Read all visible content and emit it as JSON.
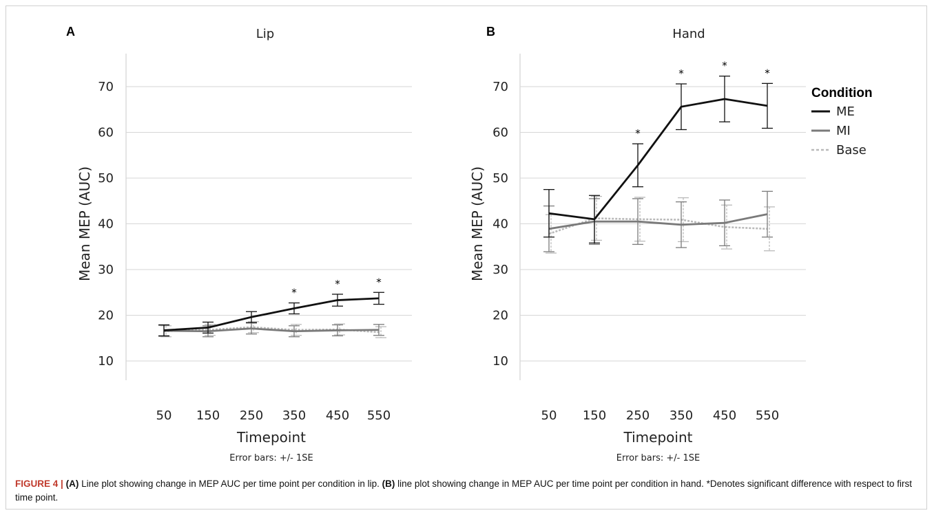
{
  "chart_data": [
    {
      "type": "line",
      "panel": "A",
      "title": "Lip",
      "xlabel": "Timepoint",
      "ylabel": "Mean MEP (AUC)",
      "x": [
        50,
        150,
        250,
        350,
        450,
        550
      ],
      "yticks": [
        10,
        20,
        30,
        40,
        50,
        60,
        70
      ],
      "ylim": [
        7,
        77
      ],
      "grid": true,
      "error_note": "Error bars: +/- 1SE",
      "series": [
        {
          "name": "ME",
          "color": "#111111",
          "values": [
            16.7,
            17.3,
            19.6,
            21.5,
            23.3,
            23.7
          ],
          "se": [
            1.2,
            1.2,
            1.2,
            1.2,
            1.3,
            1.3
          ]
        },
        {
          "name": "MI",
          "color": "#7a7a7a",
          "values": [
            16.6,
            16.5,
            17.1,
            16.5,
            16.7,
            16.8
          ],
          "se": [
            1.2,
            1.2,
            1.2,
            1.2,
            1.2,
            1.2
          ]
        },
        {
          "name": "Base",
          "color": "#b9b9b9",
          "values": [
            16.5,
            16.8,
            17.4,
            16.8,
            16.9,
            16.3
          ],
          "se": [
            1.2,
            1.2,
            1.2,
            1.2,
            1.2,
            1.2
          ]
        }
      ],
      "significant_x": [
        350,
        450,
        550
      ]
    },
    {
      "type": "line",
      "panel": "B",
      "title": "Hand",
      "xlabel": "Timepoint",
      "ylabel": "Mean MEP (AUC)",
      "x": [
        50,
        150,
        250,
        350,
        450,
        550
      ],
      "yticks": [
        10,
        20,
        30,
        40,
        50,
        60,
        70
      ],
      "ylim": [
        7,
        77
      ],
      "grid": true,
      "error_note": "Error bars: +/- 1SE",
      "series": [
        {
          "name": "ME",
          "color": "#111111",
          "values": [
            42.3,
            41.0,
            52.8,
            65.6,
            67.3,
            65.8
          ],
          "se": [
            5.2,
            5.2,
            4.7,
            5.0,
            5.0,
            4.9
          ]
        },
        {
          "name": "MI",
          "color": "#7a7a7a",
          "values": [
            38.9,
            40.5,
            40.5,
            39.8,
            40.2,
            42.1
          ],
          "se": [
            5.0,
            5.0,
            5.0,
            5.0,
            5.0,
            5.0
          ]
        },
        {
          "name": "Base",
          "color": "#b9b9b9",
          "values": [
            37.8,
            41.2,
            41.0,
            40.9,
            39.3,
            38.9
          ],
          "se": [
            4.2,
            4.8,
            4.8,
            4.8,
            4.8,
            4.8
          ]
        }
      ],
      "significant_x": [
        250,
        350,
        450,
        550
      ]
    }
  ],
  "legend": {
    "title": "Condition",
    "placement": "right",
    "items": [
      {
        "name": "ME",
        "color": "#111111",
        "style": "solid"
      },
      {
        "name": "MI",
        "color": "#7a7a7a",
        "style": "solid"
      },
      {
        "name": "Base",
        "color": "#b9b9b9",
        "style": "dashed"
      }
    ]
  },
  "significance_marker": "*",
  "caption": {
    "label": "FIGURE 4",
    "separator": "|",
    "a_label": "(A)",
    "a_text": " Line plot showing change in MEP AUC per time point per condition in lip. ",
    "b_label": "(B)",
    "b_text": " line plot showing change in MEP AUC per time point per condition in hand. *Denotes significant difference with respect to first time point."
  }
}
